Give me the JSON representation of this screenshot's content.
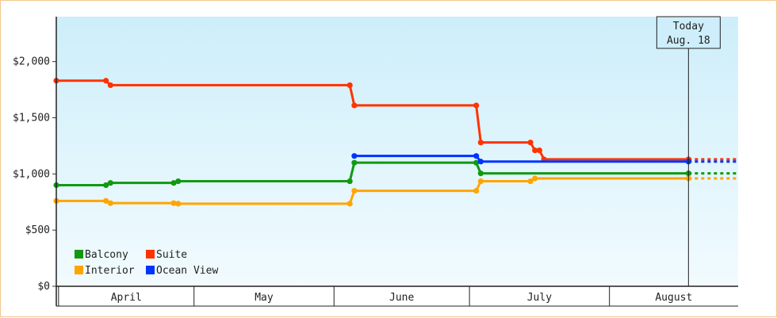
{
  "chart_data": {
    "type": "line",
    "title": "",
    "xlabel": "",
    "ylabel": "",
    "x_axis": {
      "type": "date",
      "range": [
        "2024-03-31",
        "2024-08-29"
      ],
      "month_labels": [
        {
          "label": "April",
          "start": "2024-04-01",
          "end": "2024-04-30"
        },
        {
          "label": "May",
          "start": "2024-05-01",
          "end": "2024-05-31"
        },
        {
          "label": "June",
          "start": "2024-06-01",
          "end": "2024-06-30"
        },
        {
          "label": "July",
          "start": "2024-07-01",
          "end": "2024-07-31"
        },
        {
          "label": "August",
          "start": "2024-08-01",
          "end": "2024-08-31"
        }
      ]
    },
    "y_axis": {
      "range": [
        0,
        2400
      ],
      "ticks": [
        0,
        500,
        1000,
        1500,
        2000
      ],
      "tick_labels": [
        "$0",
        "$500",
        "$1,000",
        "$1,500",
        "$2,000"
      ]
    },
    "today": {
      "date": "2024-08-18",
      "line1": "Today",
      "line2": "Aug. 18"
    },
    "projection_end": "2024-08-29",
    "legend": {
      "placement": "bottom-left",
      "columns": 2
    },
    "series": [
      {
        "name": "Balcony",
        "color": "#119911",
        "points": [
          [
            "2024-03-31",
            900
          ],
          [
            "2024-04-11",
            900
          ],
          [
            "2024-04-12",
            920
          ],
          [
            "2024-04-26",
            920
          ],
          [
            "2024-04-27",
            935
          ],
          [
            "2024-06-04",
            935
          ],
          [
            "2024-06-05",
            1100
          ],
          [
            "2024-07-02",
            1100
          ],
          [
            "2024-07-03",
            1005
          ],
          [
            "2024-08-18",
            1005
          ]
        ]
      },
      {
        "name": "Suite",
        "color": "#ff3300",
        "points": [
          [
            "2024-03-31",
            1830
          ],
          [
            "2024-04-11",
            1830
          ],
          [
            "2024-04-12",
            1790
          ],
          [
            "2024-06-04",
            1790
          ],
          [
            "2024-06-05",
            1610
          ],
          [
            "2024-07-02",
            1610
          ],
          [
            "2024-07-03",
            1280
          ],
          [
            "2024-07-14",
            1280
          ],
          [
            "2024-07-15",
            1210
          ],
          [
            "2024-07-16",
            1210
          ],
          [
            "2024-07-17",
            1130
          ],
          [
            "2024-08-18",
            1130
          ]
        ]
      },
      {
        "name": "Interior",
        "color": "#ffa500",
        "points": [
          [
            "2024-03-31",
            760
          ],
          [
            "2024-04-11",
            760
          ],
          [
            "2024-04-12",
            740
          ],
          [
            "2024-04-26",
            740
          ],
          [
            "2024-04-27",
            735
          ],
          [
            "2024-06-04",
            735
          ],
          [
            "2024-06-05",
            850
          ],
          [
            "2024-07-02",
            850
          ],
          [
            "2024-07-03",
            935
          ],
          [
            "2024-07-14",
            935
          ],
          [
            "2024-07-15",
            960
          ],
          [
            "2024-08-18",
            960
          ]
        ]
      },
      {
        "name": "Ocean View",
        "color": "#0033ff",
        "points": [
          [
            "2024-06-05",
            1160
          ],
          [
            "2024-07-02",
            1160
          ],
          [
            "2024-07-03",
            1110
          ],
          [
            "2024-08-18",
            1110
          ]
        ]
      }
    ]
  }
}
